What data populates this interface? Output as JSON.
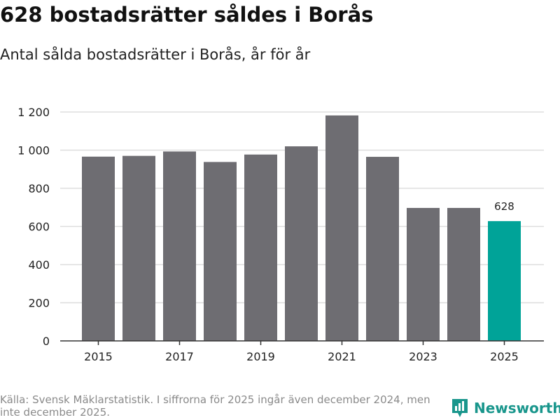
{
  "header": {
    "title": "628 bostadsrätter såldes i Borås",
    "subtitle": "Antal sålda bostadsrätter i Borås, år för år"
  },
  "footer": {
    "source": "Källa: Svensk Mäklarstatistik. I siffrorna för 2025 ingår även december 2024, men inte december 2025.",
    "brand": "Newsworthy"
  },
  "colors": {
    "bar": "#6e6d72",
    "highlight": "#00a398",
    "grid": "#dddddd",
    "axis": "#333333",
    "brand": "#19968c"
  },
  "chart_data": {
    "type": "bar",
    "title": "628 bostadsrätter såldes i Borås",
    "subtitle": "Antal sålda bostadsrätter i Borås, år för år",
    "xlabel": "",
    "ylabel": "",
    "categories": [
      "2015",
      "2016",
      "2017",
      "2018",
      "2019",
      "2020",
      "2021",
      "2022",
      "2023",
      "2024",
      "2025"
    ],
    "x_tick_labels": [
      "2015",
      "2017",
      "2019",
      "2021",
      "2023",
      "2025"
    ],
    "values": [
      966,
      970,
      993,
      938,
      977,
      1020,
      1182,
      965,
      697,
      697,
      628
    ],
    "highlight_category": "2025",
    "data_labels": [
      {
        "category": "2025",
        "text": "628"
      }
    ],
    "y_ticks": [
      0,
      200,
      400,
      600,
      800,
      1000,
      1200
    ],
    "y_tick_labels": [
      "0",
      "200",
      "400",
      "600",
      "800",
      "1 000",
      "1 200"
    ],
    "ylim": [
      0,
      1200
    ],
    "grid": true,
    "legend": "none"
  }
}
